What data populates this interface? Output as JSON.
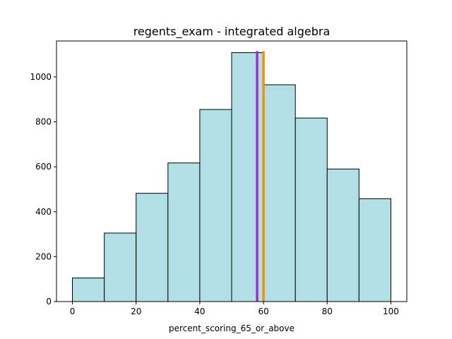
{
  "chart_data": {
    "type": "bar",
    "title": "regents_exam - integrated algebra",
    "xlabel": "percent_scoring_65_or_above",
    "ylabel": "",
    "bins": [
      {
        "start": 0,
        "end": 10,
        "value": 105
      },
      {
        "start": 10,
        "end": 20,
        "value": 305
      },
      {
        "start": 20,
        "end": 30,
        "value": 482
      },
      {
        "start": 30,
        "end": 40,
        "value": 617
      },
      {
        "start": 40,
        "end": 50,
        "value": 855
      },
      {
        "start": 50,
        "end": 60,
        "value": 1108
      },
      {
        "start": 60,
        "end": 70,
        "value": 965
      },
      {
        "start": 70,
        "end": 80,
        "value": 817
      },
      {
        "start": 80,
        "end": 90,
        "value": 590
      },
      {
        "start": 90,
        "end": 100,
        "value": 458
      }
    ],
    "xlim": [
      -5,
      105
    ],
    "ylim": [
      0,
      1160
    ],
    "xticks": [
      "0",
      "20",
      "40",
      "60",
      "80",
      "100"
    ],
    "yticks": [
      "0",
      "200",
      "400",
      "600",
      "800",
      "1000"
    ],
    "vlines": [
      {
        "x": 58,
        "top": 1115,
        "color": "#9932cc"
      },
      {
        "x": 60,
        "top": 1115,
        "color": "#ff8c00"
      }
    ],
    "bar_color": "#b0dfe5",
    "edge_color": "#000000",
    "grid": false
  }
}
